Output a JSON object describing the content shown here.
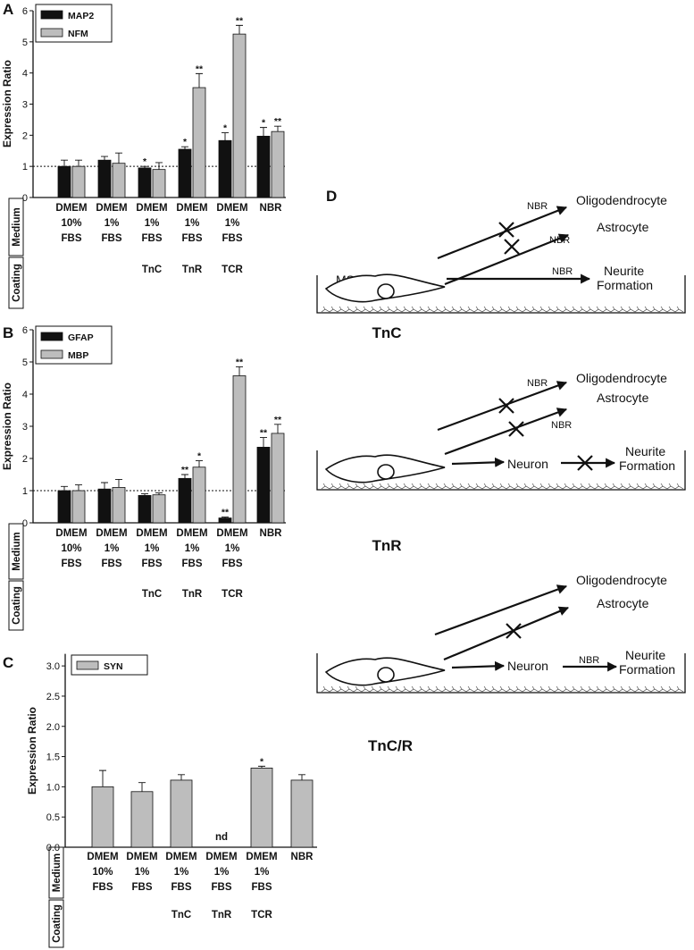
{
  "chart_data": [
    {
      "type": "bar",
      "panel": "A",
      "y_label": "Expression Ratio",
      "categories": [
        [
          "DMEM",
          "10%",
          "FBS"
        ],
        [
          "DMEM",
          "1%",
          "FBS"
        ],
        [
          "DMEM",
          "1%",
          "FBS"
        ],
        [
          "DMEM",
          "1%",
          "FBS"
        ],
        [
          "DMEM",
          "1%",
          "FBS"
        ],
        [
          "NBR"
        ]
      ],
      "coating": [
        null,
        null,
        "TnC",
        "TnR",
        "TCR",
        null
      ],
      "row_labels": [
        "Medium",
        "Coating"
      ],
      "series": [
        {
          "name": "MAP2",
          "color": "#111111",
          "values": [
            1.0,
            1.2,
            0.95,
            1.55,
            1.83,
            1.97
          ],
          "errors": [
            0.2,
            0.12,
            0.05,
            0.08,
            0.25,
            0.28
          ],
          "annotations": [
            null,
            null,
            "*",
            "*",
            "*",
            "*"
          ]
        },
        {
          "name": "NFM",
          "color": "#bdbdbd",
          "values": [
            1.0,
            1.1,
            0.9,
            3.53,
            5.25,
            2.12
          ],
          "errors": [
            0.2,
            0.33,
            0.22,
            0.45,
            0.28,
            0.17
          ],
          "annotations": [
            null,
            null,
            null,
            "**",
            "**",
            "**"
          ]
        }
      ],
      "ylim": [
        0,
        6
      ],
      "yticks": [
        0,
        1,
        2,
        3,
        4,
        5,
        6
      ],
      "reference_line": 1,
      "legend": "top-left"
    },
    {
      "type": "bar",
      "panel": "B",
      "y_label": "Expression Ratio",
      "categories": [
        [
          "DMEM",
          "10%",
          "FBS"
        ],
        [
          "DMEM",
          "1%",
          "FBS"
        ],
        [
          "DMEM",
          "1%",
          "FBS"
        ],
        [
          "DMEM",
          "1%",
          "FBS"
        ],
        [
          "DMEM",
          "1%",
          "FBS"
        ],
        [
          "NBR"
        ]
      ],
      "coating": [
        null,
        null,
        "TnC",
        "TnR",
        "TCR",
        null
      ],
      "row_labels": [
        "Medium",
        "Coating"
      ],
      "series": [
        {
          "name": "GFAP",
          "color": "#111111",
          "values": [
            1.0,
            1.05,
            0.85,
            1.38,
            0.15,
            2.35
          ],
          "errors": [
            0.13,
            0.2,
            0.05,
            0.12,
            0.03,
            0.3
          ],
          "annotations": [
            null,
            null,
            null,
            "**",
            "**",
            "**"
          ]
        },
        {
          "name": "MBP",
          "color": "#bdbdbd",
          "values": [
            1.0,
            1.1,
            0.87,
            1.73,
            4.57,
            2.78
          ],
          "errors": [
            0.18,
            0.25,
            0.06,
            0.2,
            0.28,
            0.28
          ],
          "annotations": [
            null,
            null,
            null,
            "*",
            "**",
            "**"
          ]
        }
      ],
      "ylim": [
        0,
        6
      ],
      "yticks": [
        0,
        1,
        2,
        3,
        4,
        5,
        6
      ],
      "reference_line": 1,
      "legend": "top-left"
    },
    {
      "type": "bar",
      "panel": "C",
      "y_label": "Expression Ratio",
      "categories": [
        [
          "DMEM",
          "10%",
          "FBS"
        ],
        [
          "DMEM",
          "1%",
          "FBS"
        ],
        [
          "DMEM",
          "1%",
          "FBS"
        ],
        [
          "DMEM",
          "1%",
          "FBS"
        ],
        [
          "DMEM",
          "1%",
          "FBS"
        ],
        [
          "NBR"
        ]
      ],
      "coating": [
        null,
        null,
        "TnC",
        "TnR",
        "TCR",
        null
      ],
      "row_labels": [
        "Medium",
        "Coating"
      ],
      "series": [
        {
          "name": "SYN",
          "color": "#bdbdbd",
          "values": [
            1.0,
            0.92,
            1.11,
            null,
            1.31,
            1.11
          ],
          "errors": [
            0.27,
            0.15,
            0.09,
            null,
            0.03,
            0.09
          ],
          "annotations": [
            null,
            null,
            null,
            "nd",
            "*",
            null
          ]
        }
      ],
      "ylim": [
        0,
        3.2
      ],
      "yticks": [
        {
          "value": 0,
          "label": "0.0"
        },
        0.5,
        {
          "value": 1,
          "label": "1.0"
        },
        1.5,
        {
          "value": 2,
          "label": "2.0"
        },
        2.5,
        {
          "value": 3,
          "label": "3.0"
        }
      ],
      "legend": "top-left"
    }
  ],
  "diagram": {
    "panel": "D",
    "scenarios": [
      {
        "coating": "TnC",
        "cell": "MSC",
        "targets": [
          "Oligodendrocyte",
          "Astrocyte"
        ],
        "neurite": [
          "Neurite",
          "Formation"
        ],
        "labels": [
          "NBR",
          "NBR",
          "NBR"
        ]
      },
      {
        "coating": "TnR",
        "targets": [
          "Oligodendrocyte",
          "Astrocyte"
        ],
        "neuron": "Neuron",
        "neurite": [
          "Neurite",
          "Formation"
        ],
        "labels": [
          "NBR",
          "NBR"
        ]
      },
      {
        "coating": "TnC/R",
        "targets": [
          "Oligodendrocyte",
          "Astrocyte"
        ],
        "neuron": "Neuron",
        "neurite": [
          "Neurite",
          "Formation"
        ],
        "labels": [
          "NBR"
        ]
      }
    ]
  }
}
